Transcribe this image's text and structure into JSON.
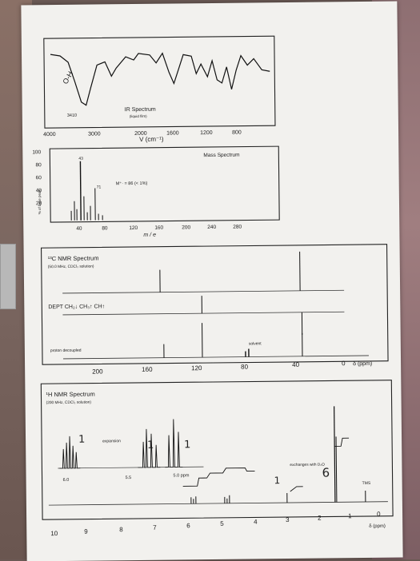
{
  "ir": {
    "title": "IR Spectrum",
    "subtitle": "(liquid film)",
    "oh_note": "O-H",
    "peak_label": "3410",
    "x_ticks": [
      "4000",
      "3000",
      "2000",
      "1600",
      "1200",
      "800"
    ],
    "xlabel": "V (cm⁻¹)"
  },
  "ms": {
    "title": "Mass Spectrum",
    "ylabel": "% of base peak",
    "y_ticks": [
      "100",
      "80",
      "60",
      "40",
      "20"
    ],
    "x_ticks": [
      "40",
      "80",
      "120",
      "160",
      "200",
      "240",
      "280"
    ],
    "xlabel": "m / e",
    "peak_43": "43",
    "peak_71": "71",
    "mplus": "M⁺· = 86  (< 1%)"
  },
  "c13": {
    "title": "¹³C NMR Spectrum",
    "subtitle": "(50.0 MHz, CDCl₃ solution)",
    "dept": "DEPT  CH₂↓  CH₃↑  CH↑",
    "decoupled": "proton decoupled",
    "solvent": "solvent",
    "x_ticks": [
      "200",
      "160",
      "120",
      "80",
      "40",
      "0"
    ],
    "unit": "δ (ppm)"
  },
  "h1": {
    "title": "¹H NMR Spectrum",
    "subtitle": "(200 MHz, CDCl₃ solution)",
    "expansion": "expansion",
    "exp_ticks": [
      "6.0",
      "5.5",
      "5.0 ppm"
    ],
    "exchanges": "exchanges with D₂O",
    "tms": "TMS",
    "x_ticks": [
      "10",
      "9",
      "8",
      "7",
      "6",
      "5",
      "4",
      "3",
      "2",
      "1",
      "0"
    ],
    "unit": "δ (ppm)",
    "hand_1a": "1",
    "hand_1b": "1",
    "hand_1c": "1",
    "hand_1d": "1",
    "hand_6": "6"
  }
}
